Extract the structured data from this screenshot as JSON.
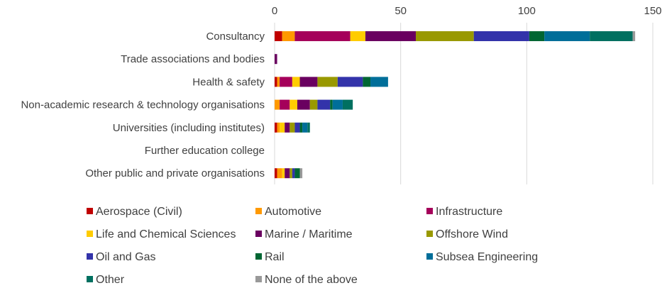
{
  "chart_data": {
    "type": "bar",
    "orientation": "horizontal",
    "stacked": true,
    "title": "",
    "xlabel": "",
    "ylabel": "",
    "xlim": [
      0,
      150
    ],
    "ticks": [
      "0",
      "50",
      "100",
      "150"
    ],
    "tick_values": [
      0,
      50,
      100,
      150
    ],
    "grid": true,
    "legend_position": "bottom",
    "categories": [
      "Consultancy",
      "Trade associations and bodies",
      "Health & safety",
      "Non-academic research & technology organisations",
      "Universities (including institutes)",
      "Further education college",
      "Other public and private organisations"
    ],
    "series": [
      {
        "name": "Aerospace (Civil)",
        "color": "#c00000",
        "values": [
          3,
          0,
          1,
          0,
          1,
          0,
          1
        ]
      },
      {
        "name": "Automotive",
        "color": "#ff9900",
        "values": [
          5,
          0,
          1,
          2,
          1,
          0,
          2
        ]
      },
      {
        "name": "Infrastructure",
        "color": "#a5005a",
        "values": [
          22,
          0,
          5,
          4,
          0,
          0,
          0
        ]
      },
      {
        "name": "Life and Chemical Sciences",
        "color": "#ffcc00",
        "values": [
          6,
          0,
          3,
          3,
          2,
          0,
          1
        ]
      },
      {
        "name": "Marine / Maritime",
        "color": "#6a0060",
        "values": [
          20,
          1,
          7,
          5,
          2,
          0,
          2
        ]
      },
      {
        "name": "Offshore Wind",
        "color": "#999900",
        "values": [
          23,
          0,
          8,
          3,
          2,
          0,
          1
        ]
      },
      {
        "name": "Oil and Gas",
        "color": "#3333aa",
        "values": [
          22,
          0,
          10,
          5,
          2,
          0,
          1
        ]
      },
      {
        "name": "Rail",
        "color": "#006633",
        "values": [
          6,
          0,
          3,
          1,
          1,
          0,
          2
        ]
      },
      {
        "name": "Subsea Engineering",
        "color": "#006e99",
        "values": [
          18,
          0,
          7,
          4,
          2,
          0,
          0
        ]
      },
      {
        "name": "Other",
        "color": "#007060",
        "values": [
          17,
          0,
          0,
          4,
          1,
          0,
          0
        ]
      },
      {
        "name": "None of the above",
        "color": "#999999",
        "values": [
          1,
          0,
          0,
          0,
          0,
          0,
          1
        ]
      }
    ]
  }
}
